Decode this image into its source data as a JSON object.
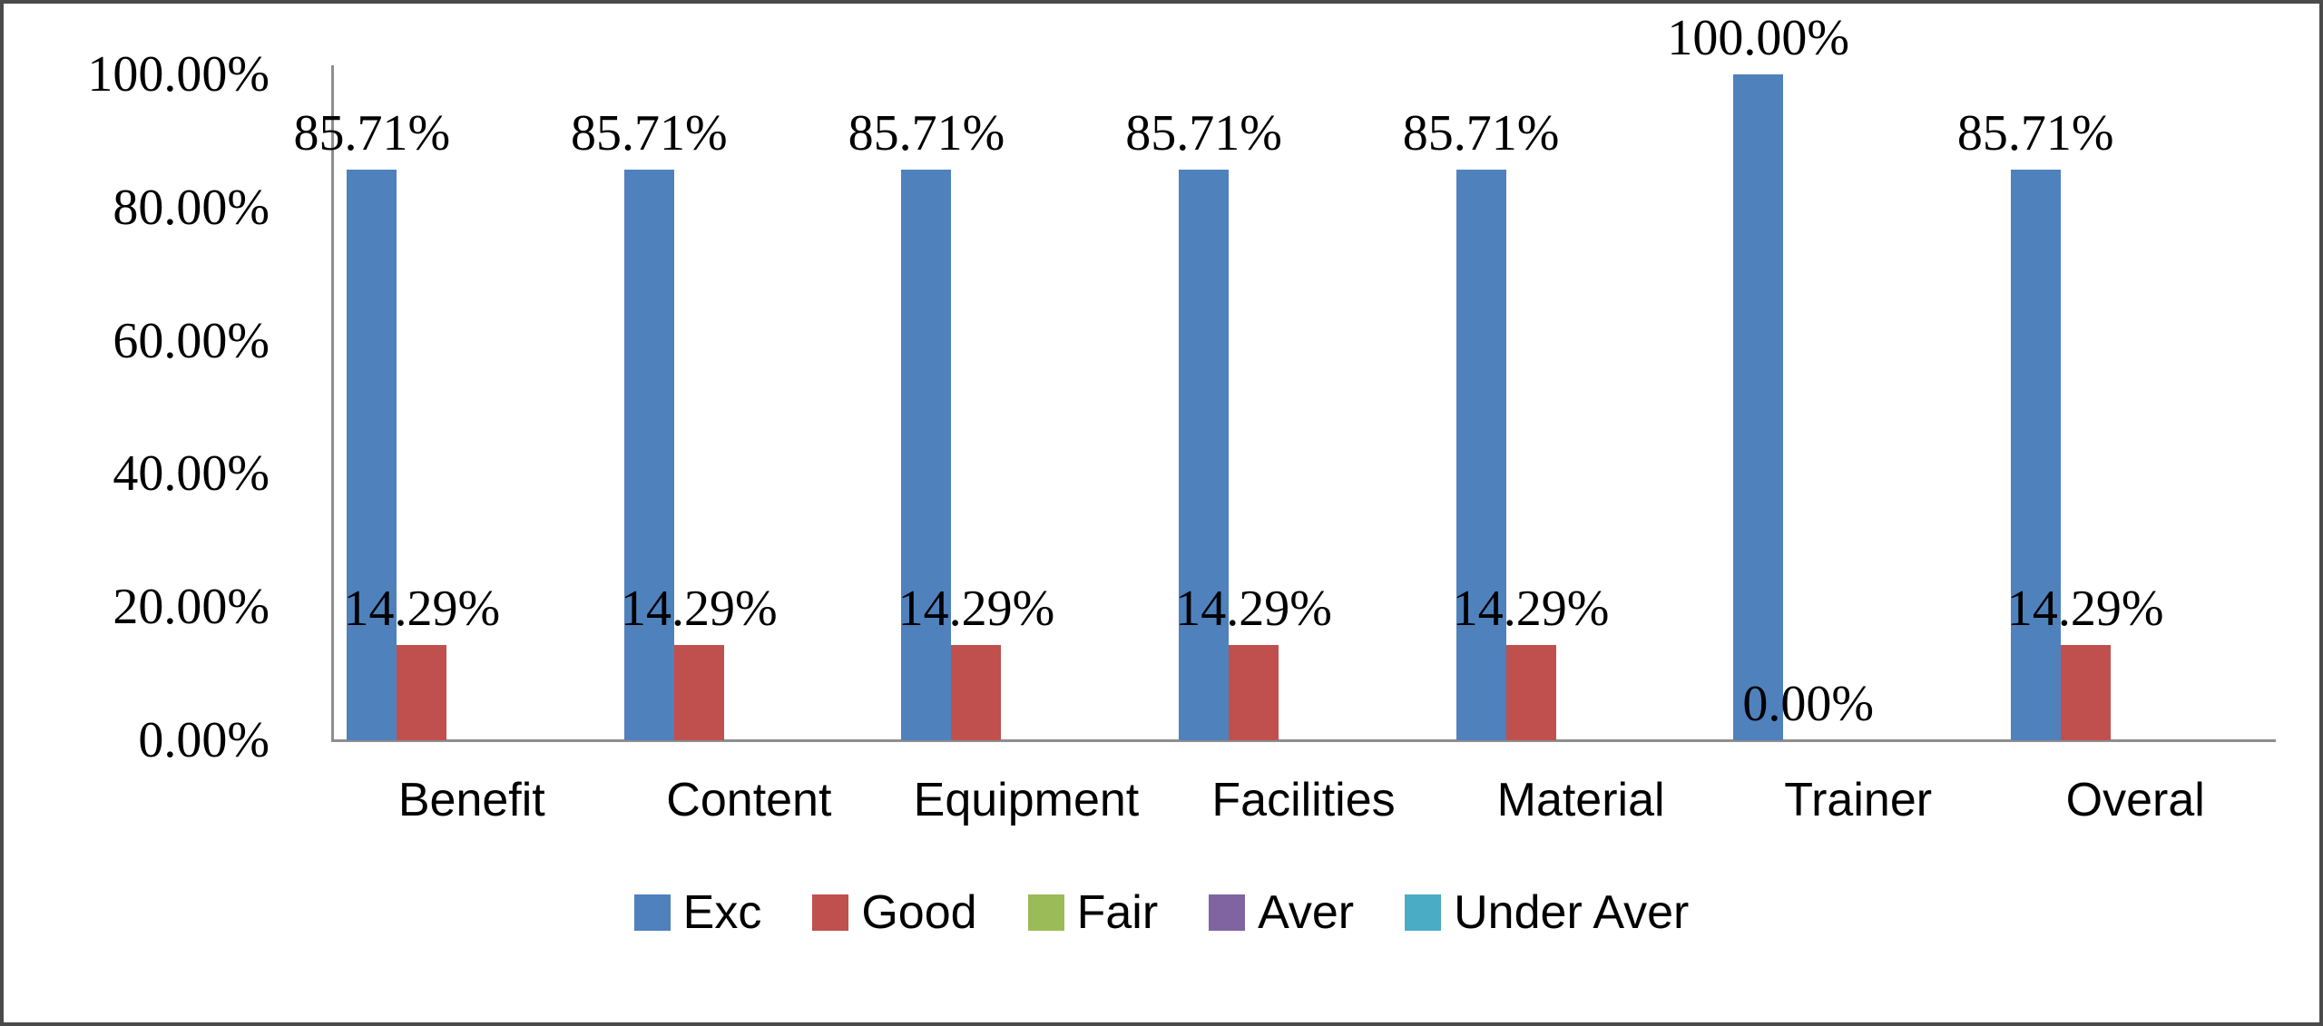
{
  "frame": {
    "background": "#ffffff",
    "border_color": "#4a4a4a"
  },
  "axis": {
    "line_color": "#8e8e8e"
  },
  "chart_data": {
    "type": "bar",
    "title": "",
    "xlabel": "",
    "ylabel": "",
    "grid": false,
    "legend_position": "bottom",
    "ylim": [
      0,
      100
    ],
    "categories": [
      "Benefit",
      "Content",
      "Equipment",
      "Facilities",
      "Material",
      "Trainer",
      "Overal"
    ],
    "y_ticks": [
      {
        "label": "0.00%",
        "value": 0
      },
      {
        "label": "20.00%",
        "value": 20
      },
      {
        "label": "40.00%",
        "value": 40
      },
      {
        "label": "60.00%",
        "value": 60
      },
      {
        "label": "80.00%",
        "value": 80
      },
      {
        "label": "100.00%",
        "value": 100
      }
    ],
    "series": [
      {
        "name": "Exc",
        "color": "#4F81BD",
        "values": [
          85.71,
          85.71,
          85.71,
          85.71,
          85.71,
          100.0,
          85.71
        ],
        "labels": [
          "85.71%",
          "85.71%",
          "85.71%",
          "85.71%",
          "85.71%",
          "100.00%",
          "85.71%"
        ]
      },
      {
        "name": "Good",
        "color": "#C0504D",
        "values": [
          14.29,
          14.29,
          14.29,
          14.29,
          14.29,
          0.0,
          14.29
        ],
        "labels": [
          "14.29%",
          "14.29%",
          "14.29%",
          "14.29%",
          "14.29%",
          "0.00%",
          "14.29%"
        ]
      },
      {
        "name": "Fair",
        "color": "#9BBB59",
        "values": [
          0,
          0,
          0,
          0,
          0,
          0,
          0
        ],
        "labels": null
      },
      {
        "name": "Aver",
        "color": "#8064A2",
        "values": [
          0,
          0,
          0,
          0,
          0,
          0,
          0
        ],
        "labels": null
      },
      {
        "name": "Under Aver",
        "color": "#4BACC6",
        "values": [
          0,
          0,
          0,
          0,
          0,
          0,
          0
        ],
        "labels": null
      }
    ]
  }
}
